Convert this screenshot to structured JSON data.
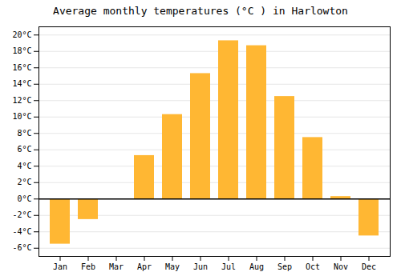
{
  "chart_data": {
    "type": "bar",
    "title": "Average monthly temperatures (°C ) in Harlowton",
    "categories": [
      "Jan",
      "Feb",
      "Mar",
      "Apr",
      "May",
      "Jun",
      "Jul",
      "Aug",
      "Sep",
      "Oct",
      "Nov",
      "Dec"
    ],
    "values": [
      -5.5,
      -2.5,
      0.0,
      5.3,
      10.3,
      15.3,
      19.3,
      18.7,
      12.5,
      7.5,
      0.3,
      -4.5
    ],
    "color": "#FFB733",
    "ylim": [
      -7,
      21
    ],
    "yticks": [
      {
        "value": -6,
        "label": "-6°C"
      },
      {
        "value": -4,
        "label": "-4°C"
      },
      {
        "value": -2,
        "label": "-2°C"
      },
      {
        "value": 0,
        "label": "0°C"
      },
      {
        "value": 2,
        "label": "2°C"
      },
      {
        "value": 4,
        "label": "4°C"
      },
      {
        "value": 6,
        "label": "6°C"
      },
      {
        "value": 8,
        "label": "8°C"
      },
      {
        "value": 10,
        "label": "10°C"
      },
      {
        "value": 12,
        "label": "12°C"
      },
      {
        "value": 14,
        "label": "14°C"
      },
      {
        "value": 16,
        "label": "16°C"
      },
      {
        "value": 18,
        "label": "18°C"
      },
      {
        "value": 20,
        "label": "20°C"
      }
    ],
    "grid": true
  }
}
